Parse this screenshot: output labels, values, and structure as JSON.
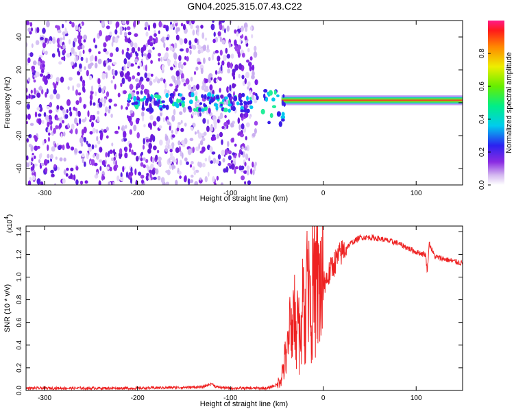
{
  "title": "GN04.2025.315.07.43.C22",
  "colors": {
    "snr_line": "#ee2222",
    "blob": "#7a1ee6"
  },
  "chart_data": [
    {
      "type": "heatmap",
      "xlabel": "Height of straight line (km)",
      "ylabel": "Frequency (Hz)",
      "xlim": [
        -320,
        150
      ],
      "ylim": [
        -50,
        50
      ],
      "x_ticks": [
        -300,
        -200,
        -100,
        0,
        100
      ],
      "y_ticks": [
        -40,
        -20,
        0,
        20,
        40
      ],
      "noise_x_range": [
        -320,
        -72
      ],
      "signal_band": {
        "x_start": -45,
        "x_end": 150,
        "center_hz": 1.5,
        "width_hz": 4
      },
      "colorbar": {
        "label": "Normalized spectral amplitude",
        "range": [
          0.0,
          1.0
        ],
        "ticks": [
          "0.0",
          "0.2",
          "0.4",
          "0.6",
          "0.8"
        ],
        "ticks_values": [
          0.0,
          0.2,
          0.4,
          0.6,
          0.8
        ]
      }
    },
    {
      "type": "line",
      "xlabel": "Height of straight line (km)",
      "ylabel": "SNR (10 * v/v)",
      "y_multiplier": "(x10",
      "y_multiplier_exp": "4",
      "xlim": [
        -320,
        150
      ],
      "ylim": [
        0,
        1.45
      ],
      "x_ticks": [
        -300,
        -200,
        -100,
        0,
        100
      ],
      "y_ticks": [
        "0.0",
        "0.2",
        "0.4",
        "0.6",
        "0.8",
        "1.0",
        "1.2",
        "1.4"
      ],
      "y_tick_values": [
        0.0,
        0.2,
        0.4,
        0.6,
        0.8,
        1.0,
        1.2,
        1.4
      ],
      "series": [
        {
          "x": [
            -320,
            -200,
            -130,
            -120,
            -115,
            -100,
            -60,
            -50,
            -46,
            -40,
            -35,
            -30,
            -25,
            -20,
            -15,
            -10,
            -5,
            0,
            5,
            10,
            20,
            30,
            40,
            50,
            60,
            70,
            80,
            90,
            100,
            110,
            112,
            114,
            120,
            130,
            150
          ],
          "y": [
            0.02,
            0.02,
            0.03,
            0.06,
            0.03,
            0.02,
            0.02,
            0.05,
            0.1,
            0.3,
            0.5,
            0.7,
            0.5,
            0.8,
            1.0,
            0.9,
            0.92,
            0.95,
            1.0,
            1.1,
            1.22,
            1.3,
            1.35,
            1.35,
            1.34,
            1.32,
            1.3,
            1.26,
            1.22,
            1.2,
            1.05,
            1.3,
            1.18,
            1.16,
            1.12
          ]
        }
      ]
    }
  ]
}
